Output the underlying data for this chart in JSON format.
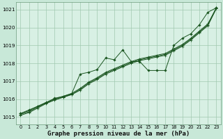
{
  "bg_color": "#c8e8d8",
  "plot_bg": "#d8f0e4",
  "grid_color": "#a0c8b0",
  "line_color": "#1a5520",
  "title": "Graphe pression niveau de la mer (hPa)",
  "xlim": [
    -0.5,
    23.5
  ],
  "ylim": [
    1014.6,
    1021.4
  ],
  "yticks": [
    1015,
    1016,
    1017,
    1018,
    1019,
    1020,
    1021
  ],
  "xticks": [
    0,
    1,
    2,
    3,
    4,
    5,
    6,
    7,
    8,
    9,
    10,
    11,
    12,
    13,
    14,
    15,
    16,
    17,
    18,
    19,
    20,
    21,
    22,
    23
  ],
  "series1": [
    1015.2,
    1015.4,
    1015.6,
    1015.8,
    1016.05,
    1016.15,
    1016.3,
    1017.4,
    1017.5,
    1017.65,
    1018.3,
    1018.2,
    1018.75,
    1018.1,
    1018.1,
    1017.6,
    1017.6,
    1017.6,
    1019.0,
    1019.4,
    1019.65,
    1020.15,
    1020.85,
    1021.1
  ],
  "series2": [
    1015.1,
    1015.25,
    1015.5,
    1015.75,
    1015.95,
    1016.1,
    1016.25,
    1016.5,
    1016.85,
    1017.1,
    1017.4,
    1017.6,
    1017.8,
    1018.0,
    1018.15,
    1018.25,
    1018.35,
    1018.45,
    1018.7,
    1018.95,
    1019.3,
    1019.7,
    1020.1,
    1021.05
  ],
  "series3": [
    1015.15,
    1015.3,
    1015.55,
    1015.78,
    1015.98,
    1016.12,
    1016.27,
    1016.55,
    1016.9,
    1017.15,
    1017.45,
    1017.65,
    1017.85,
    1018.05,
    1018.2,
    1018.3,
    1018.4,
    1018.5,
    1018.75,
    1019.0,
    1019.35,
    1019.75,
    1020.15,
    1021.08
  ],
  "series4": [
    1015.2,
    1015.35,
    1015.6,
    1015.82,
    1016.02,
    1016.16,
    1016.32,
    1016.6,
    1016.95,
    1017.2,
    1017.5,
    1017.7,
    1017.9,
    1018.1,
    1018.25,
    1018.35,
    1018.45,
    1018.55,
    1018.8,
    1019.05,
    1019.4,
    1019.8,
    1020.2,
    1021.1
  ]
}
